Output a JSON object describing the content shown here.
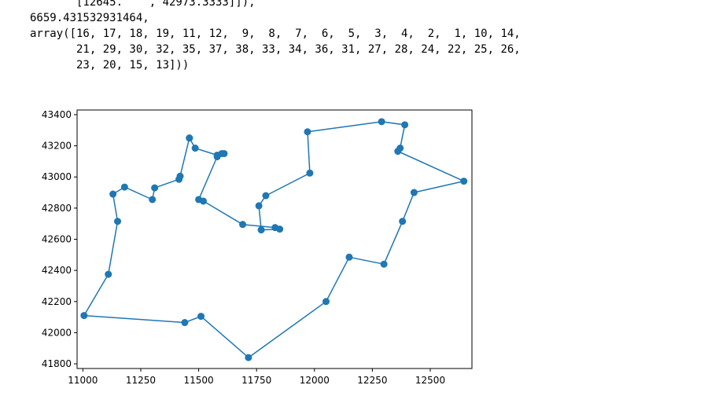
{
  "output": {
    "lines": [
      "       [12645.    , 42973.3333]]),",
      "6659.431532931464,",
      "array([16, 17, 18, 19, 11, 12,  9,  8,  7,  6,  5,  3,  4,  2,  1, 10, 14,",
      "       21, 29, 30, 32, 35, 37, 38, 33, 34, 36, 31, 27, 28, 24, 22, 25, 26,",
      "       23, 20, 15, 13]))"
    ]
  },
  "colors": {
    "series": "#1f77b4",
    "axes": "#000000",
    "background": "#ffffff"
  },
  "chart_data": {
    "type": "line",
    "markers": "circle",
    "grid": false,
    "xlim": [
      10975,
      12680
    ],
    "ylim": [
      41770,
      43430
    ],
    "xticks": [
      11000,
      11250,
      11500,
      11750,
      12000,
      12250,
      12500
    ],
    "yticks": [
      41800,
      42000,
      42200,
      42400,
      42600,
      42800,
      43000,
      43200,
      43400
    ],
    "xtick_labels": [
      "11000",
      "11250",
      "11500",
      "11750",
      "12000",
      "12250",
      "12500"
    ],
    "ytick_labels": [
      "41800",
      "42000",
      "42200",
      "42400",
      "42600",
      "42800",
      "43000",
      "43200",
      "43400"
    ],
    "points": [
      [
        11460,
        43250
      ],
      [
        11485,
        43185
      ],
      [
        11580,
        43140
      ],
      [
        11600,
        43150
      ],
      [
        11610,
        43150
      ],
      [
        11580,
        43130
      ],
      [
        11500,
        42855
      ],
      [
        11520,
        42845
      ],
      [
        11690,
        42695
      ],
      [
        11830,
        42675
      ],
      [
        11850,
        42665
      ],
      [
        11770,
        42660
      ],
      [
        11760,
        42815
      ],
      [
        11790,
        42880
      ],
      [
        11980,
        43025
      ],
      [
        11970,
        43290
      ],
      [
        12290,
        43355
      ],
      [
        12390,
        43335
      ],
      [
        12370,
        43185
      ],
      [
        12360,
        43165
      ],
      [
        12645,
        42973
      ],
      [
        12430,
        42900
      ],
      [
        12380,
        42715
      ],
      [
        12300,
        42440
      ],
      [
        12150,
        42485
      ],
      [
        12050,
        42200
      ],
      [
        11715,
        41840
      ],
      [
        11510,
        42105
      ],
      [
        11440,
        42065
      ],
      [
        11005,
        42110
      ],
      [
        11110,
        42375
      ],
      [
        11150,
        42715
      ],
      [
        11130,
        42890
      ],
      [
        11180,
        42935
      ],
      [
        11300,
        42855
      ],
      [
        11310,
        42930
      ],
      [
        11415,
        42985
      ],
      [
        11420,
        43005
      ],
      [
        11460,
        43250
      ]
    ]
  }
}
